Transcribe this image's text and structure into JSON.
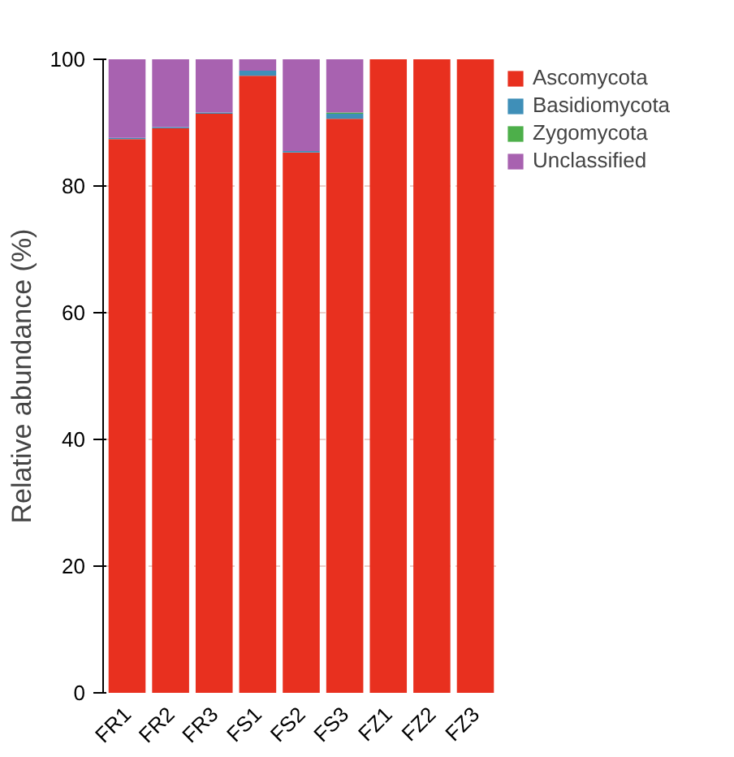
{
  "chart_data": {
    "type": "bar",
    "stacked": true,
    "ylabel": "Relative abundance (%)",
    "categories": [
      "FR1",
      "FR2",
      "FR3",
      "FS1",
      "FS2",
      "FS3",
      "FZ1",
      "FZ2",
      "FZ3"
    ],
    "series": [
      {
        "name": "Ascomycota",
        "color": "#e8301f",
        "values": [
          87.4,
          89.1,
          91.4,
          97.4,
          85.3,
          90.6,
          100,
          100,
          100
        ]
      },
      {
        "name": "Basidiomycota",
        "color": "#3f8fb8",
        "values": [
          0.2,
          0.2,
          0.2,
          0.8,
          0.2,
          0.8,
          0,
          0,
          0
        ]
      },
      {
        "name": "Zygomycota",
        "color": "#4daf4a",
        "values": [
          0,
          0,
          0,
          0,
          0,
          0.2,
          0,
          0,
          0
        ]
      },
      {
        "name": "Unclassified",
        "color": "#a862b0",
        "values": [
          12.4,
          10.7,
          8.4,
          1.8,
          14.5,
          8.4,
          0,
          0,
          0
        ]
      }
    ],
    "ylim": [
      0,
      100
    ],
    "yticks": [
      0,
      20,
      40,
      60,
      80,
      100
    ],
    "grid": "y",
    "legend": "top right"
  }
}
